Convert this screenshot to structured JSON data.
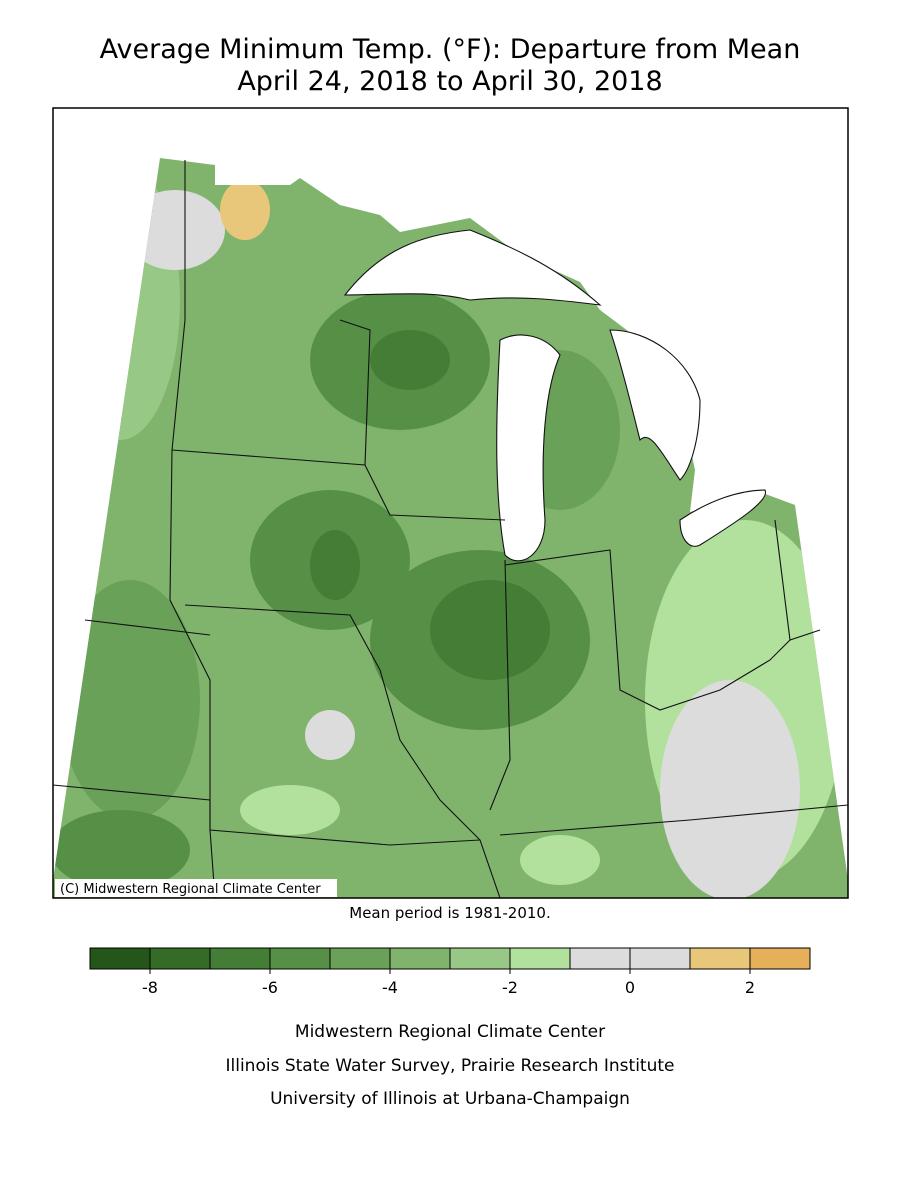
{
  "title": [
    "Average Minimum Temp. (°F): Departure from Mean",
    "April 24, 2018 to April 30, 2018"
  ],
  "map": {
    "credit": "(C) Midwestern Regional Climate Center"
  },
  "note": "Mean period is 1981-2010.",
  "legend": {
    "bins": [
      -9,
      -8,
      -7,
      -6,
      -5,
      -4,
      -3,
      -2,
      -1,
      0,
      1,
      2,
      3
    ],
    "colors": [
      "#24561a",
      "#336b27",
      "#447e36",
      "#568f46",
      "#69a158",
      "#80b46d",
      "#98c885",
      "#b2e09d",
      "#dcdcdc",
      "#dcdcdc",
      "#e9c77a",
      "#e6b05a"
    ],
    "ticks": [
      -8,
      -6,
      -4,
      -2,
      0,
      2
    ]
  },
  "footer": [
    "Midwestern Regional Climate Center",
    "Illinois State Water Survey, Prairie Research Institute",
    "University of Illinois at Urbana-Champaign"
  ]
}
